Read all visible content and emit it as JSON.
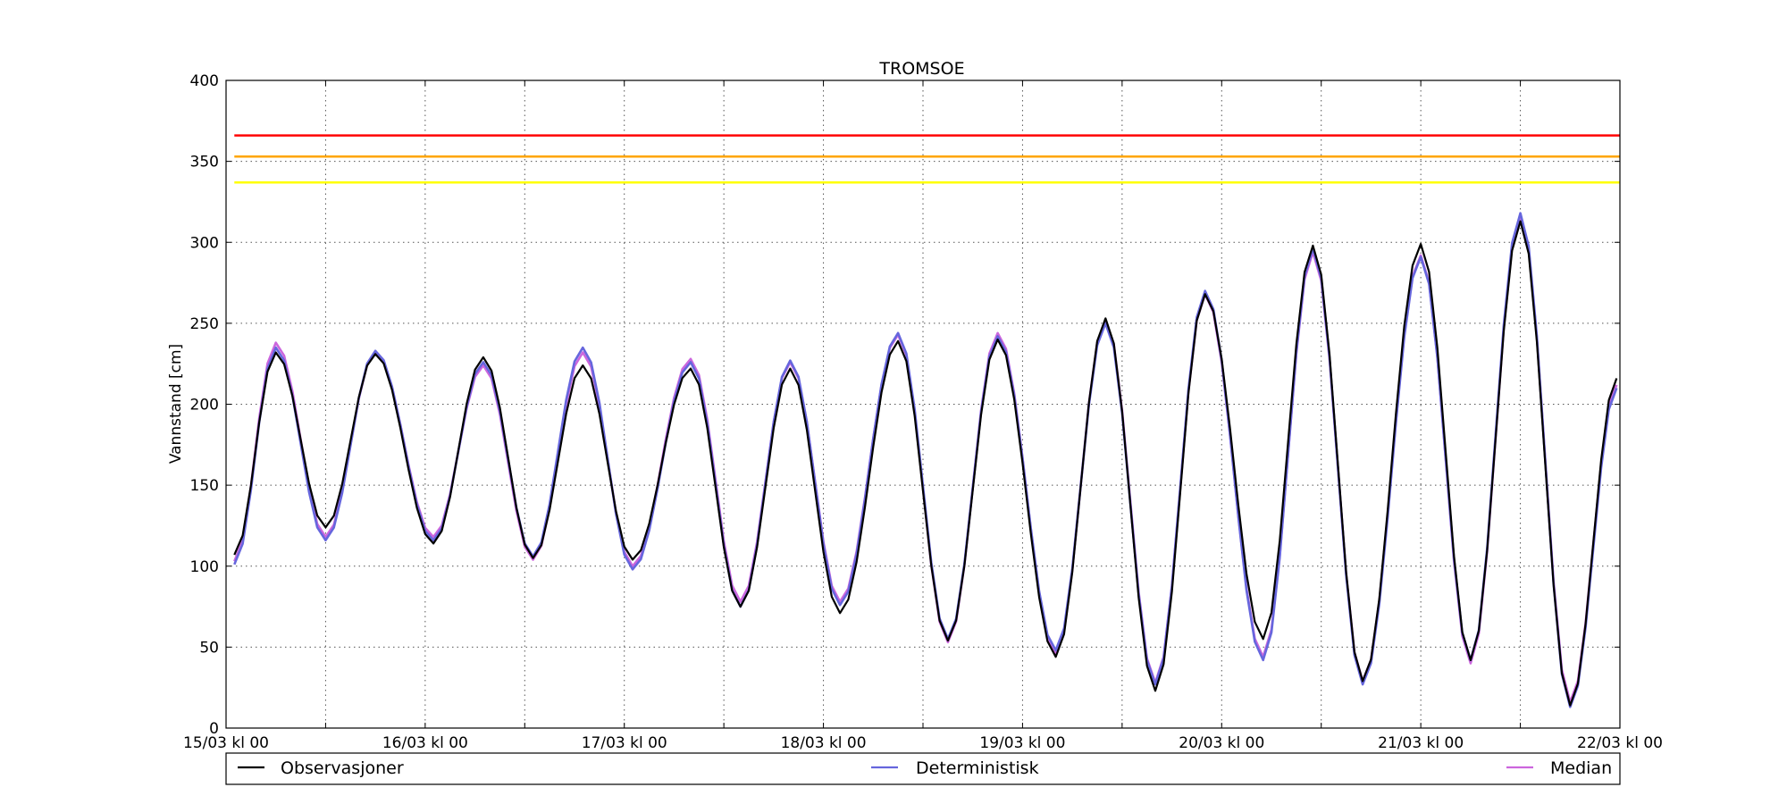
{
  "chart_data": {
    "type": "line",
    "title": "TROMSOE",
    "xlabel": "",
    "ylabel": "Vannstand [cm]",
    "ylim": [
      0,
      400
    ],
    "xlim": [
      0,
      168
    ],
    "yticks": [
      0,
      50,
      100,
      150,
      200,
      250,
      300,
      350,
      400
    ],
    "xticks": [
      0,
      24,
      48,
      72,
      96,
      120,
      144,
      168
    ],
    "xticks_minor": [
      12,
      36,
      60,
      84,
      108,
      132,
      156
    ],
    "xtick_labels": [
      "15/03 kl 00",
      "16/03 kl 00",
      "17/03 kl 00",
      "18/03 kl 00",
      "19/03 kl 00",
      "20/03 kl 00",
      "21/03 kl 00",
      "22/03 kl 00"
    ],
    "x_unit": "hours after 15/03 kl 00",
    "grid": true,
    "thresholds": [
      {
        "value": 366,
        "color": "#ff0000"
      },
      {
        "value": 353,
        "color": "#ffa500"
      },
      {
        "value": 337,
        "color": "#ffff00"
      }
    ],
    "legend": {
      "placement": "bottom",
      "entries": [
        {
          "label": "Observasjoner",
          "color": "#000000"
        },
        {
          "label": "Deterministisk",
          "color": "#6666dd"
        },
        {
          "label": "Median",
          "color": "#cc66dd"
        }
      ]
    },
    "peaks_troughs": {
      "x": [
        1,
        6,
        12,
        18,
        25,
        31,
        37,
        43,
        49,
        56,
        62,
        68,
        74,
        81,
        87,
        93,
        100,
        106,
        112,
        118,
        125,
        131,
        137,
        144,
        150,
        156,
        162,
        167.6
      ],
      "series": [
        {
          "name": "Observasjoner",
          "color": "#000000",
          "values": [
            107,
            232,
            124,
            231,
            114,
            229,
            105,
            224,
            104,
            222,
            75,
            222,
            71,
            239,
            54,
            240,
            44,
            253,
            23,
            268,
            55,
            298,
            29,
            299,
            42,
            313,
            14,
            216
          ]
        },
        {
          "name": "Deterministisk",
          "color": "#6666dd",
          "values": [
            101,
            235,
            116,
            233,
            116,
            226,
            106,
            235,
            98,
            226,
            75,
            227,
            76,
            244,
            55,
            242,
            48,
            250,
            27,
            270,
            42,
            296,
            27,
            291,
            42,
            318,
            13,
            210
          ]
        },
        {
          "name": "Median",
          "color": "#cc66dd",
          "values": [
            103,
            238,
            118,
            232,
            118,
            224,
            104,
            232,
            100,
            228,
            78,
            226,
            78,
            243,
            53,
            244,
            46,
            252,
            28,
            268,
            44,
            294,
            29,
            292,
            40,
            316,
            16,
            212
          ]
        }
      ]
    }
  }
}
